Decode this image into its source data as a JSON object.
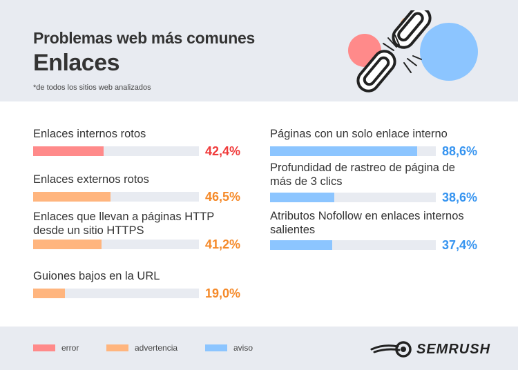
{
  "header": {
    "title": "Problemas web más comunes",
    "subtitle": "Enlaces",
    "note": "*de todos los sitios web analizados"
  },
  "colors": {
    "error": "#ff8a8a",
    "advertencia": "#ffb57e",
    "aviso": "#8cc5ff",
    "track": "#e8ebf1",
    "error_text": "#f03a3a",
    "advertencia_text": "#f58a2a",
    "aviso_text": "#3694f0"
  },
  "chart_data": {
    "type": "bar",
    "orientation": "horizontal",
    "xlim": [
      0,
      100
    ],
    "unit": "%",
    "items": [
      {
        "label": "Enlaces internos rotos",
        "value": 42.4,
        "display": "42,4%",
        "category": "error"
      },
      {
        "label": "Enlaces externos rotos",
        "value": 46.5,
        "display": "46,5%",
        "category": "advertencia"
      },
      {
        "label": "Enlaces que llevan a páginas HTTP desde un sitio HTTPS",
        "value": 41.2,
        "display": "41,2%",
        "category": "advertencia"
      },
      {
        "label": "Guiones bajos en la URL",
        "value": 19.0,
        "display": "19,0%",
        "category": "advertencia"
      },
      {
        "label": "Páginas con un solo enlace interno",
        "value": 88.6,
        "display": "88,6%",
        "category": "aviso"
      },
      {
        "label": "Profundidad de rastreo de página de más de 3 clics",
        "value": 38.6,
        "display": "38,6%",
        "category": "aviso"
      },
      {
        "label": "Atributos Nofollow en enlaces internos salientes",
        "value": 37.4,
        "display": "37,4%",
        "category": "aviso"
      }
    ]
  },
  "legend": [
    {
      "key": "error",
      "label": "error"
    },
    {
      "key": "advertencia",
      "label": "advertencia"
    },
    {
      "key": "aviso",
      "label": "aviso"
    }
  ],
  "brand": {
    "name": "SEMRUSH",
    "logo_icon": "semrush-fireball-logo"
  },
  "decoration": {
    "icon": "broken-chain-link-illustration"
  }
}
